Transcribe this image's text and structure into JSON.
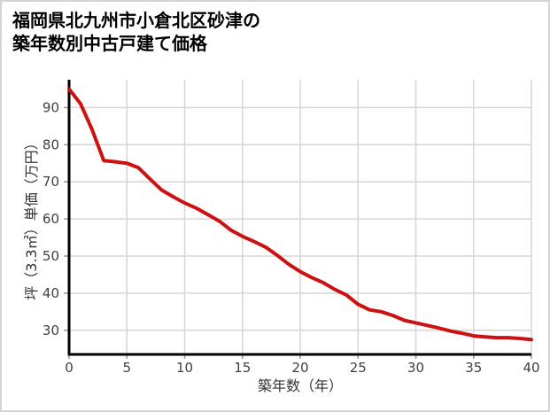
{
  "title": {
    "line1": "福岡県北九州市小倉北区砂津の",
    "line2": "築年数別中古戸建て価格"
  },
  "chart_data": {
    "type": "line",
    "x": [
      0,
      1,
      2,
      3,
      4,
      5,
      6,
      7,
      8,
      9,
      10,
      11,
      12,
      13,
      14,
      15,
      16,
      17,
      18,
      19,
      20,
      21,
      22,
      23,
      24,
      25,
      26,
      27,
      28,
      29,
      30,
      31,
      32,
      33,
      34,
      35,
      36,
      37,
      38,
      39,
      40
    ],
    "y": [
      95,
      91,
      84,
      75.7,
      75.4,
      75,
      73.8,
      70.8,
      67.8,
      66,
      64.3,
      62.9,
      61.2,
      59.4,
      57,
      55.3,
      53.9,
      52.4,
      50.2,
      47.8,
      45.8,
      44.2,
      42.8,
      41,
      39.5,
      37,
      35.5,
      35,
      34,
      32.7,
      32,
      31.3,
      30.6,
      29.8,
      29.2,
      28.5,
      28.2,
      28,
      28,
      27.8,
      27.5
    ],
    "title": "福岡県北九州市小倉北区砂津の築年数別中古戸建て価格",
    "xlabel": "築年数（年）",
    "ylabel": "坪（3.3㎡）単価（万円）",
    "xticks": [
      0,
      5,
      10,
      15,
      20,
      25,
      30,
      35,
      40
    ],
    "yticks": [
      30,
      40,
      50,
      60,
      70,
      80,
      90
    ],
    "xlim": [
      0,
      40
    ],
    "ylim": [
      23.5,
      97.5
    ],
    "grid": true,
    "legend": "none"
  },
  "colors": {
    "background": "#ffffff",
    "frame_border": "#d4d4d4",
    "grid": "#d6d6d6",
    "axis": "#000000",
    "tick_mark": "#999999",
    "tick_text": "#404040",
    "line": "#cc1111"
  }
}
